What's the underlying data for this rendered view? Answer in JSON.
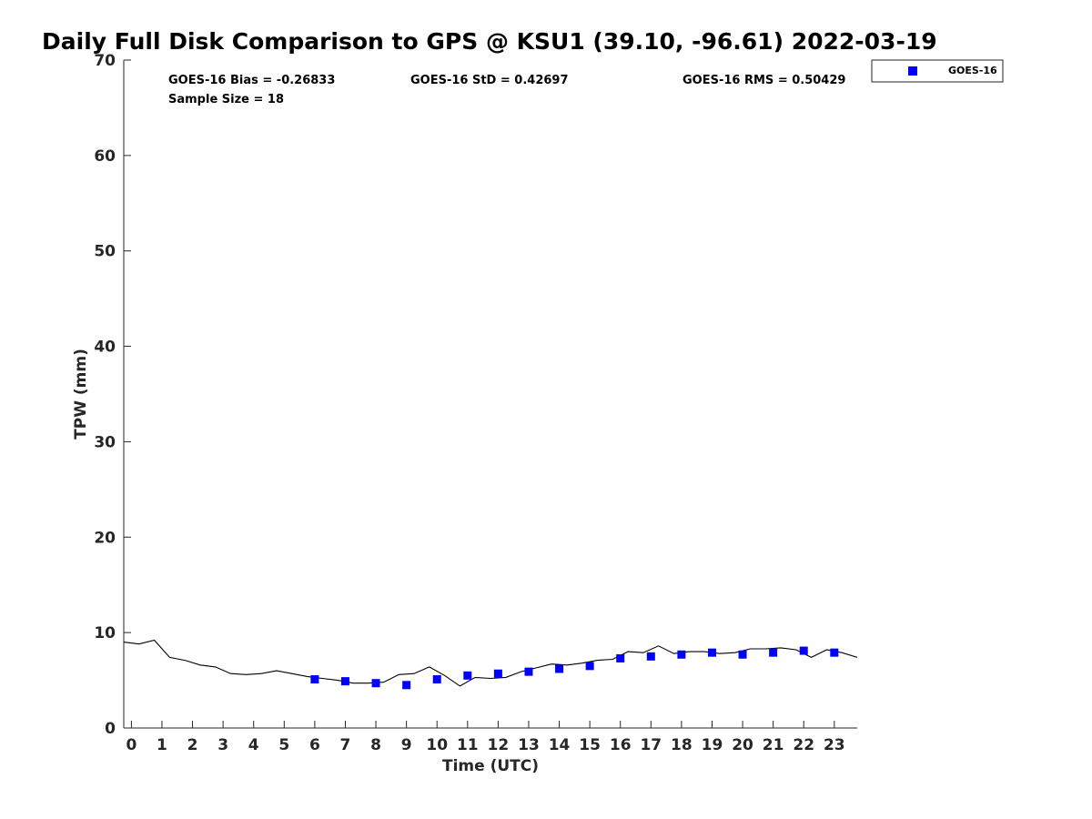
{
  "chart_data": {
    "type": "scatter",
    "title": "Daily Full Disk Comparison to GPS @ KSU1 (39.10, -96.61) 2022-03-19",
    "xlabel": "Time (UTC)",
    "ylabel": "TPW (mm)",
    "xlim": [
      -0.25,
      23.75
    ],
    "ylim": [
      0,
      70
    ],
    "xticks": [
      "0",
      "1",
      "2",
      "3",
      "4",
      "5",
      "6",
      "7",
      "8",
      "9",
      "10",
      "11",
      "12",
      "13",
      "14",
      "15",
      "16",
      "17",
      "18",
      "19",
      "20",
      "21",
      "22",
      "23"
    ],
    "yticks": [
      "0",
      "10",
      "20",
      "30",
      "40",
      "50",
      "60",
      "70"
    ],
    "grid": false,
    "legend_position": "top-right, outside plot",
    "stats": {
      "bias": "GOES-16 Bias = -0.26833",
      "std": "GOES-16 StD = 0.42697",
      "rms": "GOES-16 RMS = 0.50429",
      "sample": "Sample Size = 18"
    },
    "series": [
      {
        "name": "GOES-16",
        "marker": "square",
        "color": "#0000ff",
        "x": [
          6,
          7,
          8,
          9,
          10,
          11,
          12,
          13,
          14,
          15,
          16,
          17,
          18,
          19,
          20,
          21,
          22,
          23
        ],
        "y": [
          5.1,
          4.9,
          4.7,
          4.5,
          5.1,
          5.5,
          5.7,
          5.9,
          6.2,
          6.5,
          7.3,
          7.5,
          7.7,
          7.9,
          7.7,
          7.9,
          8.1,
          7.9
        ]
      },
      {
        "name": "",
        "marker": "line",
        "color": "#000000",
        "x": [
          -0.25,
          0.25,
          0.75,
          1.25,
          1.75,
          2.25,
          2.75,
          3.25,
          3.75,
          4.25,
          4.75,
          5.25,
          5.75,
          6.25,
          6.75,
          7.25,
          7.75,
          8.25,
          8.75,
          9.25,
          9.75,
          10.25,
          10.75,
          11.25,
          11.75,
          12.25,
          12.75,
          13.25,
          13.75,
          14.25,
          14.75,
          15.25,
          15.75,
          16.25,
          16.75,
          17.25,
          17.75,
          18.25,
          18.75,
          19.25,
          19.75,
          20.25,
          20.75,
          21.25,
          21.75,
          22.25,
          22.75,
          23.25,
          23.75
        ],
        "y": [
          9.0,
          8.8,
          9.2,
          7.4,
          7.1,
          6.6,
          6.4,
          5.7,
          5.6,
          5.7,
          6.0,
          5.7,
          5.4,
          5.2,
          5.0,
          4.7,
          4.7,
          4.8,
          5.6,
          5.7,
          6.4,
          5.5,
          4.4,
          5.3,
          5.2,
          5.3,
          5.9,
          6.3,
          6.7,
          6.6,
          6.8,
          7.1,
          7.2,
          8.0,
          7.9,
          8.6,
          7.8,
          8.0,
          8.0,
          7.8,
          7.9,
          8.3,
          8.3,
          8.4,
          8.2,
          7.4,
          8.2,
          7.9,
          7.4
        ]
      }
    ]
  }
}
